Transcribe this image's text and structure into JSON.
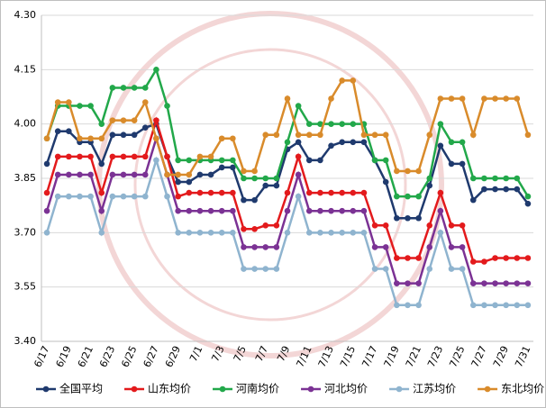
{
  "chart_data": {
    "type": "line",
    "categories": [
      "6/17",
      null,
      "6/19",
      null,
      "6/21",
      null,
      "6/23",
      null,
      "6/25",
      null,
      "6/27",
      null,
      "6/29",
      null,
      "7/1",
      null,
      "7/3",
      null,
      "7/5",
      null,
      "7/7",
      null,
      "7/9",
      null,
      "7/11",
      null,
      "7/13",
      null,
      "7/15",
      null,
      "7/17",
      null,
      "7/19",
      null,
      "7/21",
      null,
      "7/23",
      null,
      "7/25",
      null,
      "7/27",
      null,
      "7/29",
      null,
      "7/31"
    ],
    "ylim": [
      3.4,
      4.3
    ],
    "yticks": [
      {
        "value": 3.4,
        "label": "3.40"
      },
      3.55,
      {
        "value": 3.7,
        "label": "3.70"
      },
      3.85,
      {
        "value": 4.0,
        "label": "4.00"
      },
      4.15,
      {
        "value": 4.3,
        "label": "4.30"
      }
    ],
    "grid": true,
    "legend": "bottom",
    "series": [
      {
        "name": "全国平均",
        "color": "#1f3a6e",
        "values": [
          3.89,
          3.98,
          3.98,
          3.95,
          3.95,
          3.89,
          3.97,
          3.97,
          3.97,
          3.99,
          4.0,
          3.91,
          3.84,
          3.84,
          3.86,
          3.86,
          3.88,
          3.88,
          3.79,
          3.79,
          3.83,
          3.83,
          3.93,
          3.95,
          3.9,
          3.9,
          3.94,
          3.95,
          3.95,
          3.95,
          3.9,
          3.84,
          3.74,
          3.74,
          3.74,
          3.83,
          3.94,
          3.89,
          3.89,
          3.79,
          3.82,
          3.82,
          3.82,
          3.82,
          3.78
        ]
      },
      {
        "name": "山东均价",
        "color": "#e31a1c",
        "values": [
          3.81,
          3.91,
          3.91,
          3.91,
          3.91,
          3.81,
          3.91,
          3.91,
          3.91,
          3.91,
          4.01,
          3.91,
          3.8,
          3.81,
          3.81,
          3.81,
          3.81,
          3.81,
          3.71,
          3.71,
          3.72,
          3.72,
          3.81,
          3.91,
          3.81,
          3.81,
          3.81,
          3.81,
          3.81,
          3.81,
          3.72,
          3.72,
          3.63,
          3.63,
          3.63,
          3.72,
          3.81,
          3.72,
          3.72,
          3.62,
          3.62,
          3.63,
          3.63,
          3.63,
          3.63
        ]
      },
      {
        "name": "河南均价",
        "color": "#22a84a",
        "values": [
          3.96,
          4.05,
          4.05,
          4.05,
          4.05,
          4.0,
          4.1,
          4.1,
          4.1,
          4.1,
          4.15,
          4.05,
          3.9,
          3.9,
          3.9,
          3.9,
          3.9,
          3.9,
          3.85,
          3.85,
          3.85,
          3.85,
          3.95,
          4.05,
          4.0,
          4.0,
          4.0,
          4.0,
          4.0,
          4.0,
          3.9,
          3.9,
          3.8,
          3.8,
          3.8,
          3.85,
          4.0,
          3.95,
          3.95,
          3.85,
          3.85,
          3.85,
          3.85,
          3.85,
          3.8
        ]
      },
      {
        "name": "河北均价",
        "color": "#7b3294",
        "values": [
          3.76,
          3.86,
          3.86,
          3.86,
          3.86,
          3.76,
          3.86,
          3.86,
          3.86,
          3.86,
          3.96,
          3.86,
          3.76,
          3.76,
          3.76,
          3.76,
          3.76,
          3.76,
          3.66,
          3.66,
          3.66,
          3.66,
          3.76,
          3.86,
          3.76,
          3.76,
          3.76,
          3.76,
          3.76,
          3.76,
          3.66,
          3.66,
          3.56,
          3.56,
          3.56,
          3.66,
          3.76,
          3.66,
          3.66,
          3.56,
          3.56,
          3.56,
          3.56,
          3.56,
          3.56
        ]
      },
      {
        "name": "江苏均价",
        "color": "#8fb4cf",
        "values": [
          3.7,
          3.8,
          3.8,
          3.8,
          3.8,
          3.7,
          3.8,
          3.8,
          3.8,
          3.8,
          3.9,
          3.8,
          3.7,
          3.7,
          3.7,
          3.7,
          3.7,
          3.7,
          3.6,
          3.6,
          3.6,
          3.6,
          3.7,
          3.8,
          3.7,
          3.7,
          3.7,
          3.7,
          3.7,
          3.7,
          3.6,
          3.6,
          3.5,
          3.5,
          3.5,
          3.6,
          3.7,
          3.6,
          3.6,
          3.5,
          3.5,
          3.5,
          3.5,
          3.5,
          3.5
        ]
      },
      {
        "name": "东北均价",
        "color": "#d98b2b",
        "values": [
          3.96,
          4.06,
          4.06,
          3.96,
          3.96,
          3.96,
          4.01,
          4.01,
          4.01,
          4.06,
          3.96,
          3.86,
          3.86,
          3.86,
          3.91,
          3.91,
          3.96,
          3.96,
          3.87,
          3.87,
          3.97,
          3.97,
          4.07,
          3.97,
          3.97,
          3.97,
          4.07,
          4.12,
          4.12,
          3.97,
          3.97,
          3.97,
          3.87,
          3.87,
          3.87,
          3.97,
          4.07,
          4.07,
          4.07,
          3.97,
          4.07,
          4.07,
          4.07,
          4.07,
          3.97
        ]
      }
    ]
  }
}
